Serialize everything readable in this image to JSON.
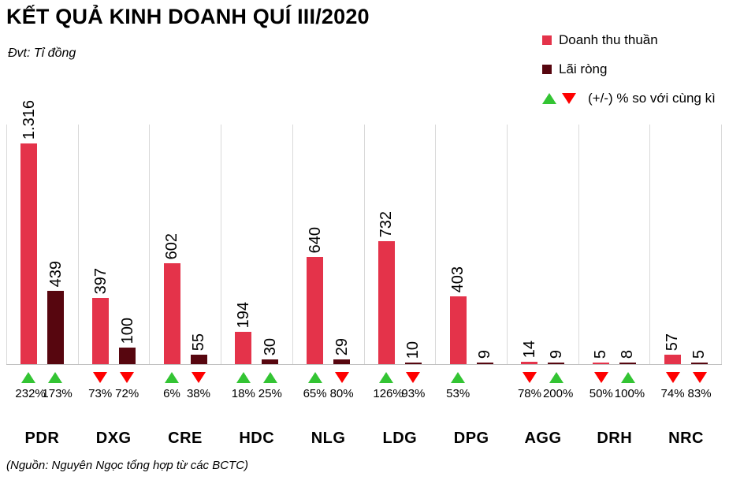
{
  "header": {
    "title": "KẾT QUẢ KINH DOANH QUÍ III/2020",
    "unit_note": "Đvt: Tỉ đồng"
  },
  "legend": {
    "revenue_label": "Doanh thu thuần",
    "profit_label": "Lãi ròng",
    "change_label": "(+/-) % so với cùng kì"
  },
  "footer": {
    "source_note": "(Nguồn: Nguyên Ngọc tổng hợp từ các BCTC)"
  },
  "colors": {
    "revenue": "#e4334a",
    "profit": "#57060f",
    "up": "#33c433",
    "down": "#fe0000",
    "gridline": "#d9d9d9",
    "baseline": "#bfbfbf"
  },
  "chart_data": {
    "type": "bar",
    "title": "KẾT QUẢ KINH DOANH QUÍ III/2020",
    "unit": "Tỉ đồng",
    "categories": [
      "PDR",
      "DXG",
      "CRE",
      "HDC",
      "NLG",
      "LDG",
      "DPG",
      "AGG",
      "DRH",
      "NRC"
    ],
    "series": [
      {
        "name": "Doanh thu thuần",
        "color_key": "revenue",
        "values": [
          1316,
          397,
          602,
          194,
          640,
          732,
          403,
          14,
          5,
          57
        ],
        "value_labels": [
          "1.316",
          "397",
          "602",
          "194",
          "640",
          "732",
          "403",
          "14",
          "5",
          "57"
        ],
        "change_pct": [
          "232%",
          "73%",
          "6%",
          "18%",
          "65%",
          "126%",
          "53%",
          "78%",
          "50%",
          "74%"
        ],
        "change_dir": [
          "up",
          "down",
          "up",
          "up",
          "up",
          "up",
          "up",
          "down",
          "down",
          "down"
        ]
      },
      {
        "name": "Lãi ròng",
        "color_key": "profit",
        "values": [
          439,
          100,
          55,
          30,
          29,
          10,
          9,
          9,
          8,
          5
        ],
        "value_labels": [
          "439",
          "100",
          "55",
          "30",
          "29",
          "10",
          "9",
          "9",
          "8",
          "5"
        ],
        "change_pct": [
          "173%",
          "72%",
          "38%",
          "25%",
          "80%",
          "93%",
          null,
          "200%",
          "100%",
          "83%"
        ],
        "change_dir": [
          "up",
          "down",
          "down",
          "up",
          "down",
          "down",
          null,
          "up",
          "up",
          "down"
        ]
      }
    ],
    "ylim": [
      0,
      1410
    ],
    "value_axis_visible": false,
    "value_labels_rotated": true,
    "legend_position": "top-right",
    "grid": "vertical-group-separators"
  }
}
